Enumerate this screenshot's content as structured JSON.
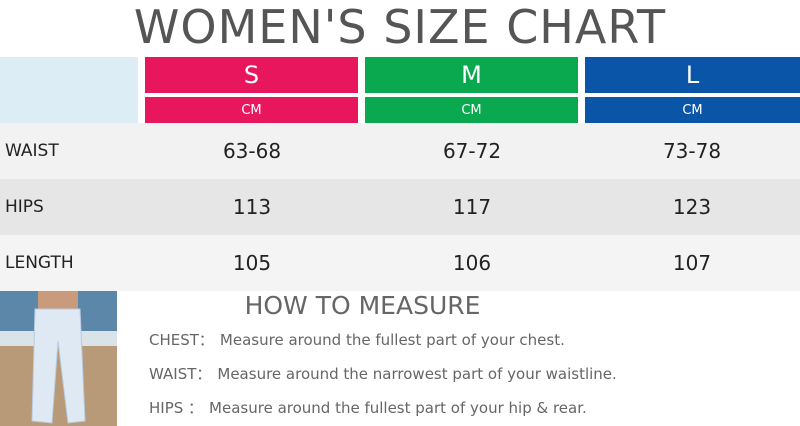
{
  "title": "WOMEN'S SIZE CHART",
  "sizes": [
    {
      "label": "S",
      "unit": "CM"
    },
    {
      "label": "M",
      "unit": "CM"
    },
    {
      "label": "L",
      "unit": "CM"
    }
  ],
  "rows": [
    {
      "label": "WAIST",
      "values": [
        "63-68",
        "67-72",
        "73-78"
      ]
    },
    {
      "label": "HIPS",
      "values": [
        113,
        117,
        123
      ]
    },
    {
      "label": "LENGTH",
      "values": [
        105,
        106,
        107
      ]
    }
  ],
  "measure": {
    "title": "HOW TO MEASURE",
    "items": [
      {
        "label": "CHEST：",
        "text": "Measure around the fullest part of your chest."
      },
      {
        "label": "WAIST：",
        "text": "Measure around the narrowest part of your waistline."
      },
      {
        "label": "HIPS ：",
        "text": "Measure around the fullest part of your hip & rear."
      }
    ]
  }
}
